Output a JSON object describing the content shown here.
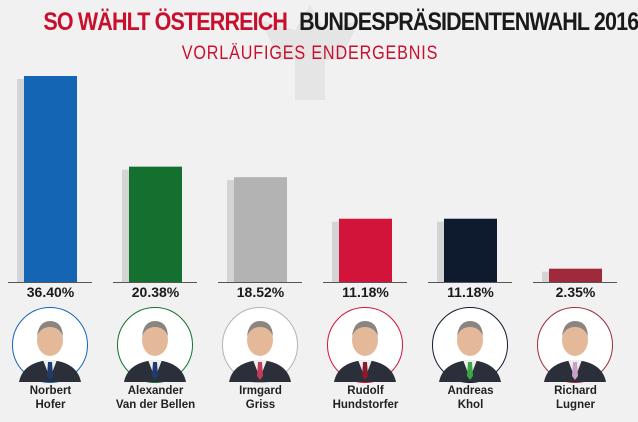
{
  "header": {
    "title_left": "SO WÄHLT ÖSTERREICH",
    "title_right": "BUNDESPRÄSIDENTENWAHL 2016",
    "subtitle": "VORLÄUFIGES ENDERGEBNIS"
  },
  "chart_data": {
    "type": "bar",
    "title": "BUNDESPRÄSIDENTENWAHL 2016",
    "subtitle": "VORLÄUFIGES ENDERGEBNIS",
    "categories": [
      "Norbert Hofer",
      "Alexander Van der Bellen",
      "Irmgard Griss",
      "Rudolf Hundstorfer",
      "Andreas Khol",
      "Richard Lugner"
    ],
    "values": [
      36.4,
      20.38,
      18.52,
      11.18,
      11.18,
      2.35
    ],
    "unit": "%",
    "ylim": [
      0,
      36.4
    ],
    "grid": false,
    "colors": [
      "#1565b5",
      "#13702f",
      "#b3b3b3",
      "#d2143a",
      "#0e1a2d",
      "#9e2a3b"
    ]
  },
  "labels": [
    "36.40%",
    "20.38%",
    "18.52%",
    "11.18%",
    "11.18%",
    "2.35%"
  ],
  "candidates": [
    {
      "first": "Norbert",
      "last": "Hofer",
      "tie": "#1d3b6e"
    },
    {
      "first": "Alexander",
      "last": "Van der Bellen",
      "tie": "#1d3b6e"
    },
    {
      "first": "Irmgard",
      "last": "Griss",
      "tie": "#c43b5a"
    },
    {
      "first": "Rudolf",
      "last": "Hundstorfer",
      "tie": "#8b1a2e"
    },
    {
      "first": "Andreas",
      "last": "Khol",
      "tie": "#3aa845"
    },
    {
      "first": "Richard",
      "last": "Lugner",
      "tie": "#c9a0c8"
    }
  ]
}
